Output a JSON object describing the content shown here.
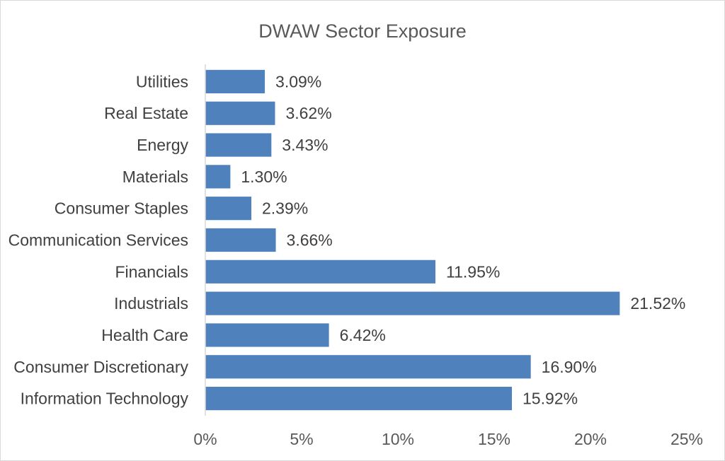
{
  "chart_data": {
    "type": "bar",
    "orientation": "horizontal",
    "title": "DWAW Sector Exposure",
    "xlabel": "",
    "ylabel": "",
    "categories": [
      "Utilities",
      "Real Estate",
      "Energy",
      "Materials",
      "Consumer Staples",
      "Communication Services",
      "Financials",
      "Industrials",
      "Health Care",
      "Consumer Discretionary",
      "Information Technology"
    ],
    "values": [
      3.09,
      3.62,
      3.43,
      1.3,
      2.39,
      3.66,
      11.95,
      21.52,
      6.42,
      16.9,
      15.92
    ],
    "value_labels": [
      "3.09%",
      "3.62%",
      "3.43%",
      "1.30%",
      "2.39%",
      "3.66%",
      "11.95%",
      "21.52%",
      "6.42%",
      "16.90%",
      "15.92%"
    ],
    "xlim": [
      0,
      25
    ],
    "x_ticks": [
      0,
      5,
      10,
      15,
      20,
      25
    ],
    "x_tick_labels": [
      "0%",
      "5%",
      "10%",
      "15%",
      "20%",
      "25%"
    ],
    "grid": false,
    "legend": "none",
    "colors": {
      "bar": "#4f81bd",
      "text": "#404040",
      "axis": "#d9d9d9"
    }
  }
}
